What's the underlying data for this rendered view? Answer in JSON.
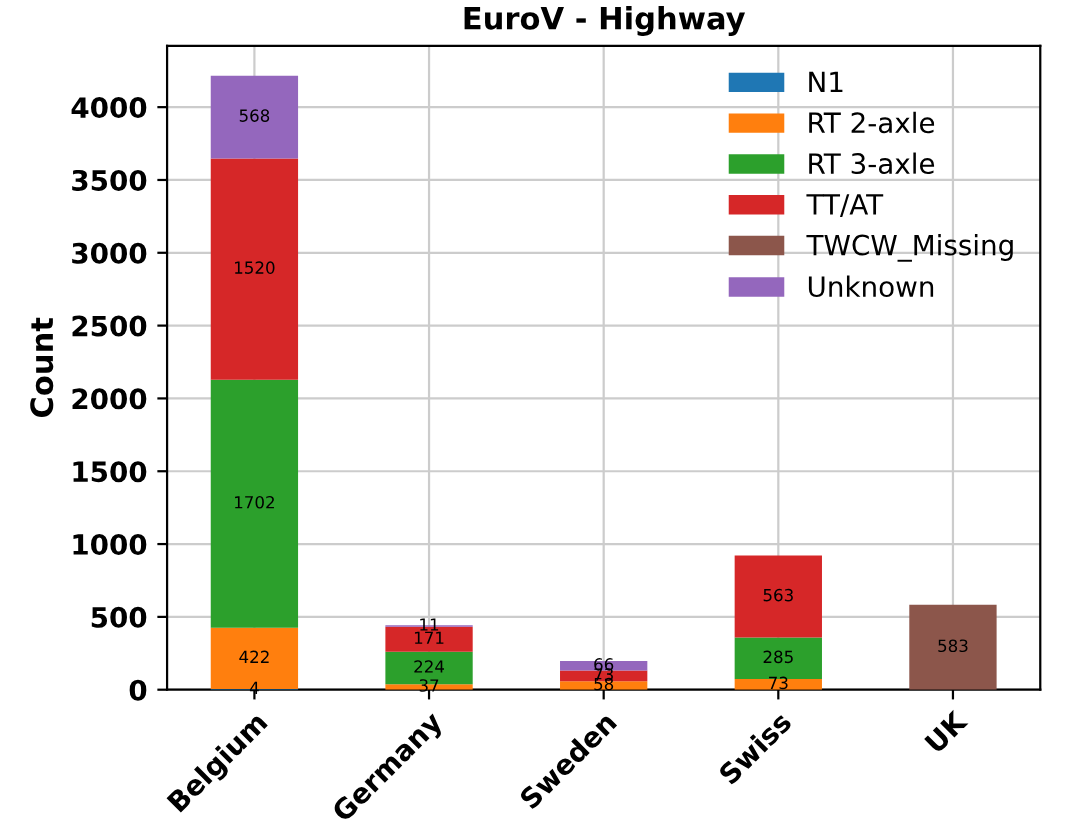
{
  "chart_data": {
    "type": "bar",
    "title": "EuroV - Highway",
    "ylabel": "Count",
    "categories": [
      "Belgium",
      "Germany",
      "Sweden",
      "Swiss",
      "UK"
    ],
    "stacked": true,
    "data_labels": true,
    "grid": true,
    "legend": "top right",
    "ylim": [
      0,
      4420
    ],
    "yticks": [
      0,
      500,
      1000,
      1500,
      2000,
      2500,
      3000,
      3500,
      4000
    ],
    "series": [
      {
        "name": "N1",
        "color": "#1f77b4",
        "values": [
          4,
          null,
          null,
          null,
          null
        ]
      },
      {
        "name": "RT 2-axle",
        "color": "#ff7f0e",
        "values": [
          422,
          37,
          58,
          73,
          null
        ]
      },
      {
        "name": "RT 3-axle",
        "color": "#2ca02c",
        "values": [
          1702,
          224,
          null,
          285,
          null
        ]
      },
      {
        "name": "TT/AT",
        "color": "#d62728",
        "values": [
          1520,
          171,
          73,
          563,
          null
        ]
      },
      {
        "name": "TWCW_Missing",
        "color": "#8c564b",
        "values": [
          null,
          null,
          null,
          null,
          583
        ]
      },
      {
        "name": "Unknown",
        "color": "#9467bd",
        "values": [
          568,
          11,
          66,
          null,
          null
        ]
      }
    ]
  }
}
